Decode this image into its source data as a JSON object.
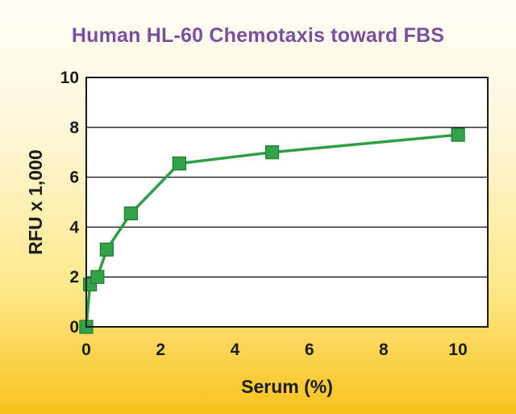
{
  "chart_data": {
    "type": "line",
    "title": "Human HL-60 Chemotaxis toward FBS",
    "xlabel": "Serum (%)",
    "ylabel": "RFU x 1,000",
    "xlim": [
      0,
      10.8
    ],
    "ylim": [
      0,
      10
    ],
    "xticks": [
      0,
      2,
      4,
      6,
      8,
      10
    ],
    "yticks": [
      0,
      2,
      4,
      6,
      8,
      10
    ],
    "grid": "horizontal",
    "series": [
      {
        "color": "#2e9e45",
        "marker_color": "#33a34a",
        "x": [
          0,
          0.1,
          0.3,
          0.55,
          1.2,
          2.5,
          5,
          10
        ],
        "y": [
          0,
          1.7,
          2.0,
          3.1,
          4.55,
          6.55,
          7.0,
          7.7
        ]
      }
    ],
    "background": "#ffffff",
    "title_color": "#7b4fa0"
  }
}
